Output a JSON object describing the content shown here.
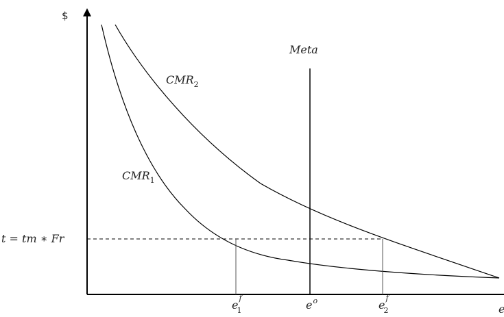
{
  "diagram": {
    "y_axis_symbol": "$",
    "x_axis_symbol": "e",
    "curve_labels": {
      "cmr1": {
        "base": "CMR",
        "sub": "1"
      },
      "cmr2": {
        "base": "CMR",
        "sub": "2"
      }
    },
    "meta_label": "Meta",
    "tax_label": "t = tm ∗ Fr",
    "x_marks": {
      "e1f": {
        "base": "e",
        "sub": "1",
        "sup": "f"
      },
      "eo": {
        "base": "e",
        "sup": "o"
      },
      "e2f": {
        "base": "e",
        "sub": "2",
        "sup": "f"
      }
    }
  }
}
